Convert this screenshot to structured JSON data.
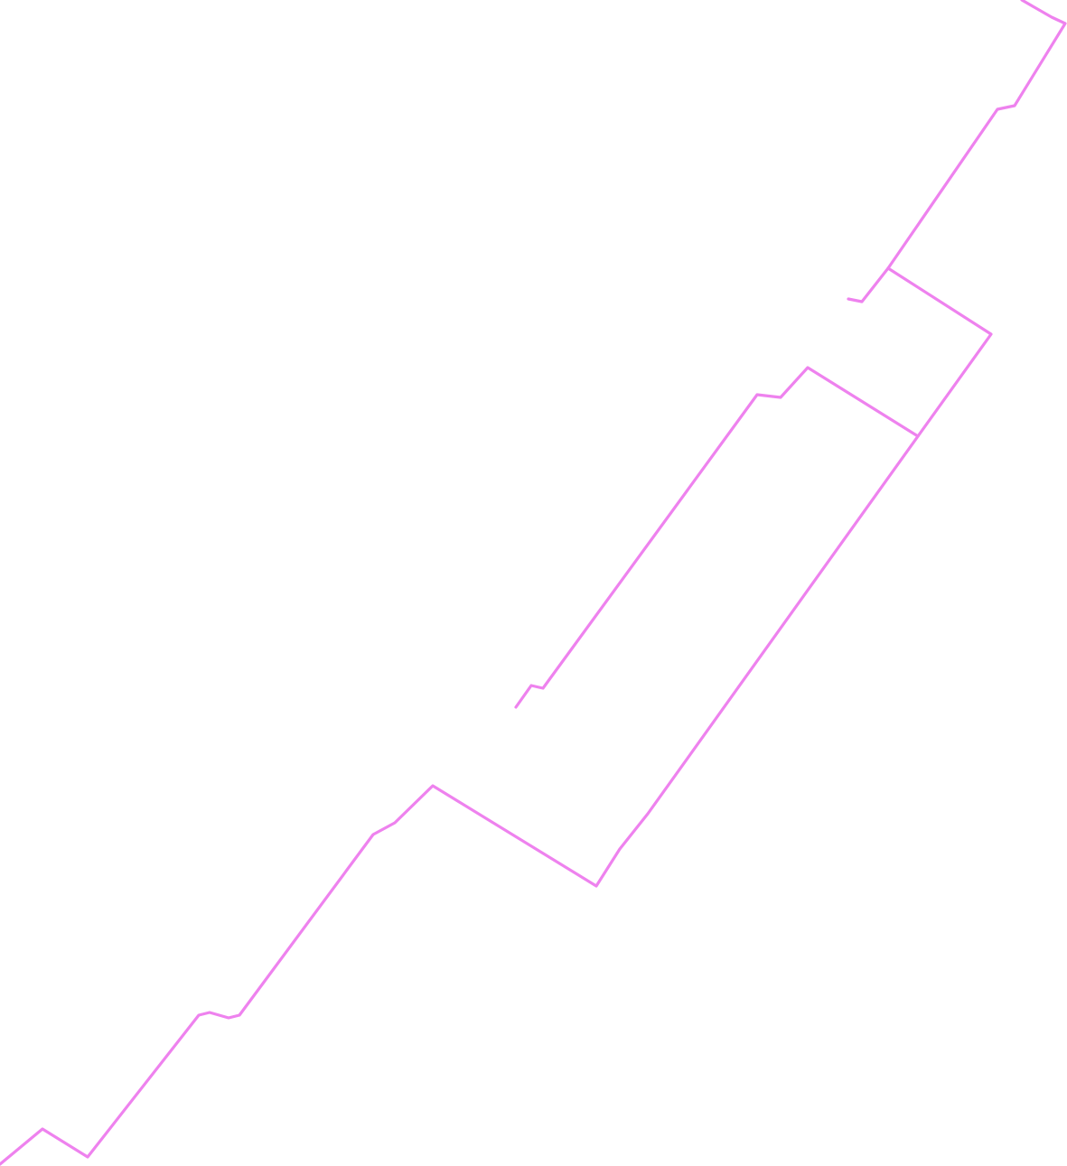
{
  "map": {
    "background_color": "#ffffff",
    "route_color": "#ee82ee",
    "route_segments": [
      "main-route",
      "spur-east-upper",
      "spur-west-upper",
      "spur-middle",
      "spur-middle-tail"
    ]
  }
}
